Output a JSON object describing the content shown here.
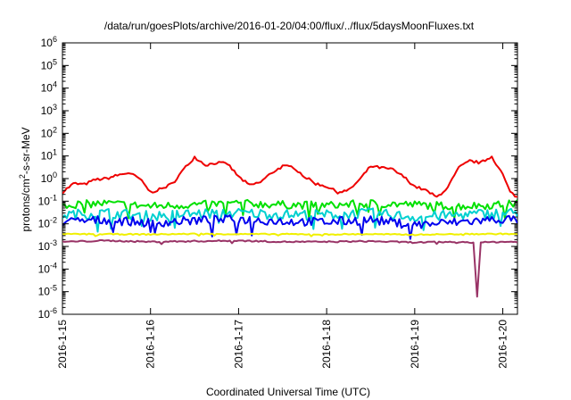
{
  "chart_data": {
    "type": "line",
    "title": "/data/run/goesPlots/archive/2016-01-20/04:00/flux/../flux/5daysMoonFluxes.txt",
    "xlabel": "Coordinated Universal Time (UTC)",
    "ylabel": {
      "main": "protons/cm",
      "sup": "2",
      "rest": "-s-sr-MeV"
    },
    "y_scale": "log",
    "ylim": [
      1e-06,
      1000000.0
    ],
    "y_ticks": [
      {
        "value": 1e-06,
        "base": "10",
        "exp": "-6"
      },
      {
        "value": 1e-05,
        "base": "10",
        "exp": "-5"
      },
      {
        "value": 0.0001,
        "base": "10",
        "exp": "-4"
      },
      {
        "value": 0.001,
        "base": "10",
        "exp": "-3"
      },
      {
        "value": 0.01,
        "base": "10",
        "exp": "-2"
      },
      {
        "value": 0.1,
        "base": "10",
        "exp": "-1"
      },
      {
        "value": 1,
        "base": "10",
        "exp": "0"
      },
      {
        "value": 10,
        "base": "10",
        "exp": "1"
      },
      {
        "value": 100,
        "base": "10",
        "exp": "2"
      },
      {
        "value": 1000,
        "base": "10",
        "exp": "3"
      },
      {
        "value": 10000,
        "base": "10",
        "exp": "4"
      },
      {
        "value": 100000,
        "base": "10",
        "exp": "5"
      },
      {
        "value": 1000000,
        "base": "10",
        "exp": "6"
      }
    ],
    "x_ticks": [
      {
        "value": 0,
        "label": "2016-1-15"
      },
      {
        "value": 1,
        "label": "2016-1-16"
      },
      {
        "value": 2,
        "label": "2016-1-17"
      },
      {
        "value": 3,
        "label": "2016-1-18"
      },
      {
        "value": 4,
        "label": "2016-1-19"
      },
      {
        "value": 5,
        "label": "2016-1-20"
      }
    ],
    "xlim": [
      "2016-01-15 00:00",
      "2016-01-20 04:00"
    ],
    "grid": false,
    "legend": "none",
    "series": [
      {
        "color": "#ee0000",
        "x": [
          "2016-01-15 00:00",
          "2016-01-15 03:00",
          "2016-01-15 06:00",
          "2016-01-15 09:00",
          "2016-01-15 12:00",
          "2016-01-15 15:00",
          "2016-01-15 18:00",
          "2016-01-15 21:00",
          "2016-01-16 00:00",
          "2016-01-16 03:00",
          "2016-01-16 06:00",
          "2016-01-16 09:00",
          "2016-01-16 12:00",
          "2016-01-16 15:00",
          "2016-01-16 18:00",
          "2016-01-16 21:00",
          "2016-01-17 00:00",
          "2016-01-17 03:00",
          "2016-01-17 06:00",
          "2016-01-17 09:00",
          "2016-01-17 12:00",
          "2016-01-17 15:00",
          "2016-01-17 18:00",
          "2016-01-17 21:00",
          "2016-01-18 00:00",
          "2016-01-18 03:00",
          "2016-01-18 06:00",
          "2016-01-18 09:00",
          "2016-01-18 12:00",
          "2016-01-18 15:00",
          "2016-01-18 18:00",
          "2016-01-18 21:00",
          "2016-01-19 00:00",
          "2016-01-19 03:00",
          "2016-01-19 06:00",
          "2016-01-19 09:00",
          "2016-01-19 12:00",
          "2016-01-19 15:00",
          "2016-01-19 18:00",
          "2016-01-19 21:00",
          "2016-01-20 00:00",
          "2016-01-20 02:00",
          "2016-01-20 04:00"
        ],
        "y": [
          0.25,
          0.6,
          0.55,
          0.9,
          1.0,
          1.4,
          1.8,
          1.0,
          0.25,
          0.35,
          0.6,
          2.5,
          9.0,
          4.0,
          5.0,
          4.5,
          1.2,
          0.5,
          0.7,
          1.8,
          3.5,
          3.2,
          1.2,
          0.6,
          0.45,
          0.25,
          0.3,
          0.9,
          3.5,
          3.0,
          2.5,
          1.2,
          0.45,
          0.3,
          0.15,
          0.4,
          3.0,
          6.0,
          5.0,
          9.5,
          1.5,
          0.25,
          0.15
        ]
      },
      {
        "color": "#00e000",
        "x": [
          "2016-01-15 00:00",
          "2016-01-15 12:00",
          "2016-01-16 00:00",
          "2016-01-16 12:00",
          "2016-01-17 00:00",
          "2016-01-17 12:00",
          "2016-01-18 00:00",
          "2016-01-18 12:00",
          "2016-01-19 00:00",
          "2016-01-19 12:00",
          "2016-01-20 00:00",
          "2016-01-20 04:00"
        ],
        "y": [
          0.07,
          0.08,
          0.06,
          0.07,
          0.08,
          0.07,
          0.065,
          0.08,
          0.07,
          0.06,
          0.07,
          0.08
        ]
      },
      {
        "color": "#00d0d0",
        "x": [
          "2016-01-15 00:00",
          "2016-01-15 12:00",
          "2016-01-16 00:00",
          "2016-01-16 12:00",
          "2016-01-17 00:00",
          "2016-01-17 12:00",
          "2016-01-18 00:00",
          "2016-01-18 12:00",
          "2016-01-19 00:00",
          "2016-01-19 12:00",
          "2016-01-20 00:00",
          "2016-01-20 04:00"
        ],
        "y": [
          0.025,
          0.03,
          0.022,
          0.028,
          0.03,
          0.026,
          0.025,
          0.03,
          0.02,
          0.025,
          0.03,
          0.03
        ]
      },
      {
        "color": "#0000ee",
        "x": [
          "2016-01-15 00:00",
          "2016-01-15 12:00",
          "2016-01-16 00:00",
          "2016-01-16 12:00",
          "2016-01-17 00:00",
          "2016-01-17 12:00",
          "2016-01-18 00:00",
          "2016-01-18 12:00",
          "2016-01-19 00:00",
          "2016-01-19 12:00",
          "2016-01-20 00:00",
          "2016-01-20 04:00"
        ],
        "y": [
          0.012,
          0.015,
          0.011,
          0.014,
          0.016,
          0.013,
          0.012,
          0.015,
          0.009,
          0.012,
          0.016,
          0.015
        ]
      },
      {
        "color": "#f0f000",
        "x": [
          "2016-01-15 00:00",
          "2016-01-15 12:00",
          "2016-01-16 00:00",
          "2016-01-16 12:00",
          "2016-01-17 00:00",
          "2016-01-17 12:00",
          "2016-01-18 00:00",
          "2016-01-18 12:00",
          "2016-01-19 00:00",
          "2016-01-19 12:00",
          "2016-01-20 00:00",
          "2016-01-20 04:00"
        ],
        "y": [
          0.0035,
          0.0035,
          0.0034,
          0.0036,
          0.0035,
          0.0035,
          0.0034,
          0.0035,
          0.0033,
          0.0035,
          0.0036,
          0.0035
        ]
      },
      {
        "color": "#993366",
        "x": [
          "2016-01-15 00:00",
          "2016-01-15 12:00",
          "2016-01-16 00:00",
          "2016-01-16 12:00",
          "2016-01-17 00:00",
          "2016-01-17 12:00",
          "2016-01-18 00:00",
          "2016-01-18 12:00",
          "2016-01-19 00:00",
          "2016-01-19 12:00",
          "2016-01-19 16:00",
          "2016-01-19 17:00",
          "2016-01-19 18:00",
          "2016-01-20 00:00",
          "2016-01-20 04:00"
        ],
        "y": [
          0.0016,
          0.0018,
          0.0016,
          0.0017,
          0.0018,
          0.0016,
          0.0016,
          0.0017,
          0.0015,
          0.0016,
          0.0015,
          6e-06,
          0.0015,
          0.0016,
          0.0016
        ]
      }
    ]
  }
}
